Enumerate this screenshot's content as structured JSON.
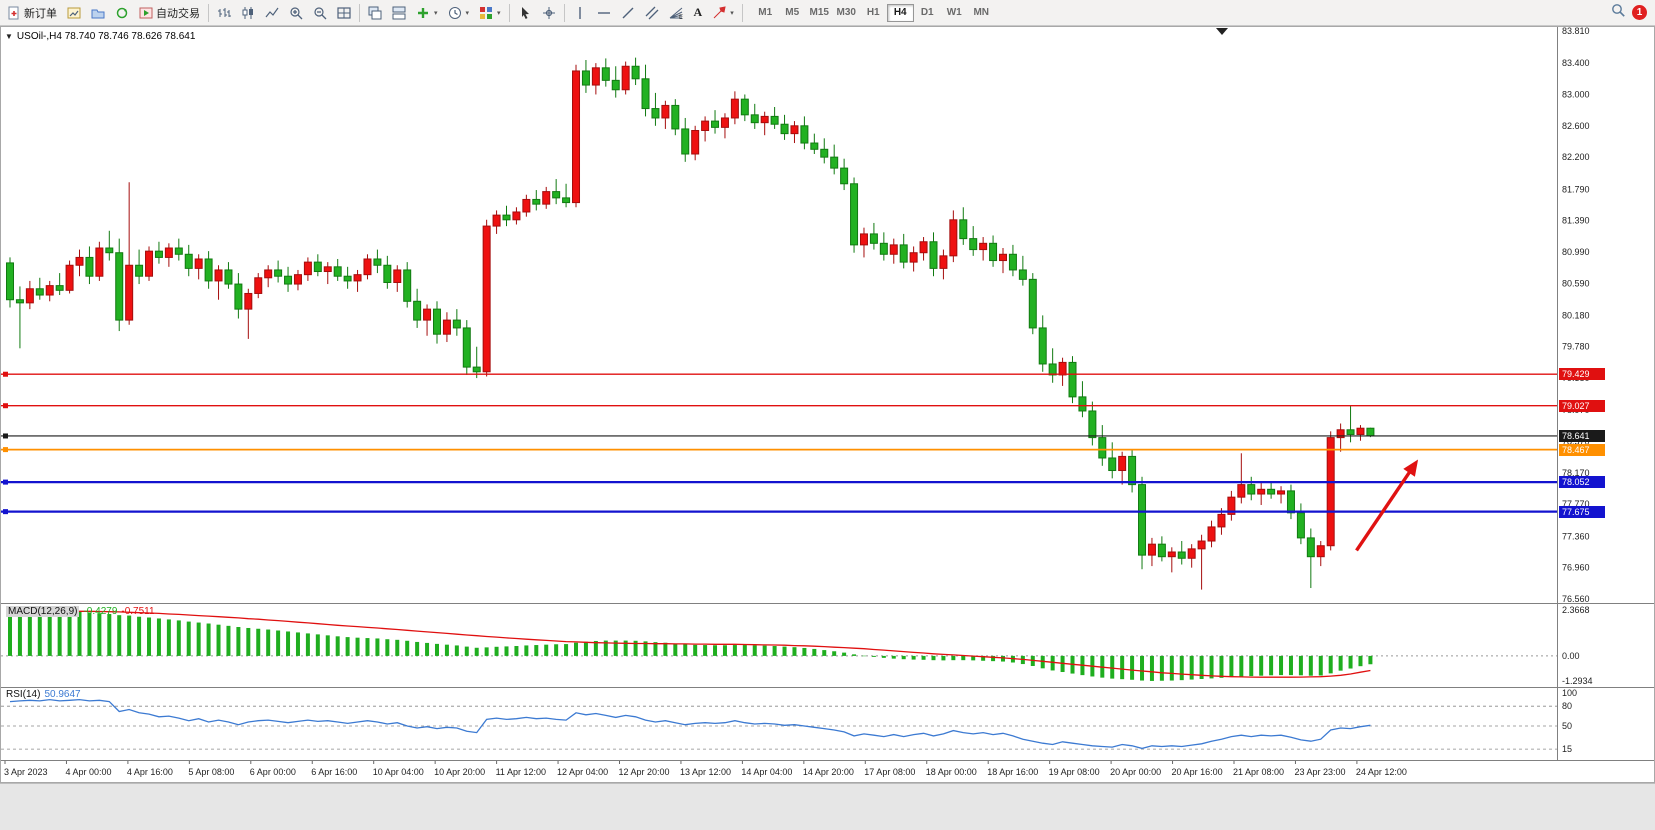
{
  "toolbar": {
    "new_order_label": "新订单",
    "auto_trading_label": "自动交易",
    "text_tool_label": "A",
    "timeframes": [
      "M1",
      "M5",
      "M15",
      "M30",
      "H1",
      "H4",
      "D1",
      "W1",
      "MN"
    ],
    "active_timeframe": "H4",
    "notification_badge": "1"
  },
  "chart_header": {
    "title": "USOil-,H4 78.740 78.746 78.626 78.641",
    "symbol": "USOil-",
    "period": "H4",
    "open": "78.740",
    "high": "78.746",
    "low": "78.626",
    "close": "78.641"
  },
  "price_axis": {
    "max": 83.81,
    "min": 76.56,
    "labels": [
      "83.810",
      "83.400",
      "83.000",
      "82.600",
      "82.200",
      "81.790",
      "81.390",
      "80.990",
      "80.590",
      "80.180",
      "79.780",
      "79.380",
      "78.970",
      "78.570",
      "78.170",
      "77.770",
      "77.360",
      "76.960",
      "76.560"
    ]
  },
  "hlines": [
    {
      "price": 79.429,
      "label": "79.429",
      "color": "#e01010",
      "width": 1.4
    },
    {
      "price": 79.027,
      "label": "79.027",
      "color": "#e01010",
      "width": 1.4
    },
    {
      "price": 78.641,
      "label": "78.641",
      "color": "#1a1a1a",
      "width": 1.1
    },
    {
      "price": 78.467,
      "label": "78.467",
      "color": "#ff9000",
      "width": 1.7
    },
    {
      "price": 78.052,
      "label": "78.052",
      "color": "#1313cf",
      "width": 2.2
    },
    {
      "price": 77.675,
      "label": "77.675",
      "color": "#1313cf",
      "width": 2.2
    }
  ],
  "time_axis": {
    "labels": [
      "3 Apr 2023",
      "4 Apr 00:00",
      "4 Apr 16:00",
      "5 Apr 08:00",
      "6 Apr 00:00",
      "6 Apr 16:00",
      "10 Apr 04:00",
      "10 Apr 20:00",
      "11 Apr 12:00",
      "12 Apr 04:00",
      "12 Apr 20:00",
      "13 Apr 12:00",
      "14 Apr 04:00",
      "14 Apr 20:00",
      "17 Apr 08:00",
      "18 Apr 00:00",
      "18 Apr 16:00",
      "19 Apr 08:00",
      "20 Apr 00:00",
      "20 Apr 16:00",
      "21 Apr 08:00",
      "23 Apr 23:00",
      "24 Apr 12:00"
    ]
  },
  "indicators": {
    "macd": {
      "name_label": "MACD(12,26,9)",
      "main_value": "-0.4279",
      "signal_value": "-0.7511",
      "axis_labels": [
        "2.3668",
        "0.00",
        "-1.2934"
      ],
      "max": 2.3668,
      "min": -1.2934,
      "histogram_color": "#1fae1f",
      "signal_color": "#e01010"
    },
    "rsi": {
      "name_label": "RSI(14)",
      "value": "50.9647",
      "axis_labels": [
        "100",
        "80",
        "50",
        "15"
      ],
      "levels": [
        80,
        50,
        15
      ],
      "max": 100,
      "min": 0,
      "line_color": "#3c7ad2"
    }
  },
  "chart_data": {
    "type": "candlestick",
    "symbol": "USOil",
    "timeframe": "H4",
    "up_color": "#ee1111",
    "down_color": "#22b122",
    "candles": [
      [
        80.85,
        80.92,
        80.28,
        80.38
      ],
      [
        80.38,
        80.55,
        79.76,
        80.34
      ],
      [
        80.34,
        80.62,
        80.26,
        80.52
      ],
      [
        80.52,
        80.66,
        80.38,
        80.44
      ],
      [
        80.44,
        80.62,
        80.36,
        80.56
      ],
      [
        80.56,
        80.72,
        80.44,
        80.5
      ],
      [
        80.5,
        80.88,
        80.46,
        80.82
      ],
      [
        80.82,
        81.02,
        80.68,
        80.92
      ],
      [
        80.92,
        81.06,
        80.58,
        80.68
      ],
      [
        80.68,
        81.12,
        80.62,
        81.04
      ],
      [
        81.04,
        81.26,
        80.88,
        80.98
      ],
      [
        80.98,
        81.16,
        79.98,
        80.12
      ],
      [
        80.12,
        81.88,
        80.06,
        80.82
      ],
      [
        80.82,
        81.02,
        80.58,
        80.68
      ],
      [
        80.68,
        81.06,
        80.62,
        81.0
      ],
      [
        81.0,
        81.12,
        80.84,
        80.92
      ],
      [
        80.92,
        81.1,
        80.8,
        81.04
      ],
      [
        81.04,
        81.16,
        80.88,
        80.96
      ],
      [
        80.96,
        81.08,
        80.68,
        80.78
      ],
      [
        80.78,
        80.96,
        80.64,
        80.9
      ],
      [
        80.9,
        81.0,
        80.52,
        80.62
      ],
      [
        80.62,
        80.82,
        80.38,
        80.76
      ],
      [
        80.76,
        80.86,
        80.52,
        80.58
      ],
      [
        80.58,
        80.72,
        80.14,
        80.26
      ],
      [
        80.26,
        80.52,
        79.88,
        80.46
      ],
      [
        80.46,
        80.72,
        80.4,
        80.66
      ],
      [
        80.66,
        80.82,
        80.54,
        80.76
      ],
      [
        80.76,
        80.88,
        80.6,
        80.68
      ],
      [
        80.68,
        80.8,
        80.48,
        80.58
      ],
      [
        80.58,
        80.76,
        80.5,
        80.7
      ],
      [
        80.7,
        80.92,
        80.62,
        80.86
      ],
      [
        80.86,
        80.96,
        80.68,
        80.74
      ],
      [
        80.74,
        80.86,
        80.58,
        80.8
      ],
      [
        80.8,
        80.9,
        80.62,
        80.68
      ],
      [
        80.68,
        80.8,
        80.52,
        80.62
      ],
      [
        80.62,
        80.76,
        80.48,
        80.7
      ],
      [
        80.7,
        80.96,
        80.64,
        80.9
      ],
      [
        80.9,
        81.02,
        80.72,
        80.82
      ],
      [
        80.82,
        80.94,
        80.52,
        80.6
      ],
      [
        80.6,
        80.82,
        80.48,
        80.76
      ],
      [
        80.76,
        80.86,
        80.28,
        80.36
      ],
      [
        80.36,
        80.52,
        80.02,
        80.12
      ],
      [
        80.12,
        80.32,
        79.92,
        80.26
      ],
      [
        80.26,
        80.36,
        79.82,
        79.94
      ],
      [
        79.94,
        80.22,
        79.84,
        80.12
      ],
      [
        80.12,
        80.26,
        79.92,
        80.02
      ],
      [
        80.02,
        80.12,
        79.42,
        79.52
      ],
      [
        79.52,
        79.78,
        79.38,
        79.46
      ],
      [
        79.46,
        81.4,
        79.4,
        81.32
      ],
      [
        81.32,
        81.52,
        81.22,
        81.46
      ],
      [
        81.46,
        81.58,
        81.32,
        81.4
      ],
      [
        81.4,
        81.56,
        81.34,
        81.5
      ],
      [
        81.5,
        81.72,
        81.44,
        81.66
      ],
      [
        81.66,
        81.78,
        81.52,
        81.6
      ],
      [
        81.6,
        81.82,
        81.54,
        81.76
      ],
      [
        81.76,
        81.92,
        81.6,
        81.68
      ],
      [
        81.68,
        81.86,
        81.56,
        81.62
      ],
      [
        81.62,
        83.38,
        81.56,
        83.3
      ],
      [
        83.3,
        83.44,
        83.02,
        83.12
      ],
      [
        83.12,
        83.4,
        83.0,
        83.34
      ],
      [
        83.34,
        83.46,
        83.1,
        83.18
      ],
      [
        83.18,
        83.36,
        82.96,
        83.06
      ],
      [
        83.06,
        83.42,
        83.0,
        83.36
      ],
      [
        83.36,
        83.47,
        83.12,
        83.2
      ],
      [
        83.2,
        83.38,
        82.72,
        82.82
      ],
      [
        82.82,
        83.02,
        82.6,
        82.7
      ],
      [
        82.7,
        82.92,
        82.56,
        82.86
      ],
      [
        82.86,
        82.94,
        82.48,
        82.56
      ],
      [
        82.56,
        82.7,
        82.14,
        82.24
      ],
      [
        82.24,
        82.6,
        82.16,
        82.54
      ],
      [
        82.54,
        82.72,
        82.4,
        82.66
      ],
      [
        82.66,
        82.8,
        82.5,
        82.58
      ],
      [
        82.58,
        82.76,
        82.44,
        82.7
      ],
      [
        82.7,
        83.04,
        82.62,
        82.94
      ],
      [
        82.94,
        83.0,
        82.66,
        82.74
      ],
      [
        82.74,
        82.88,
        82.56,
        82.64
      ],
      [
        82.64,
        82.78,
        82.48,
        82.72
      ],
      [
        82.72,
        82.84,
        82.56,
        82.62
      ],
      [
        82.62,
        82.74,
        82.42,
        82.5
      ],
      [
        82.5,
        82.66,
        82.38,
        82.6
      ],
      [
        82.6,
        82.72,
        82.3,
        82.38
      ],
      [
        82.38,
        82.5,
        82.24,
        82.3
      ],
      [
        82.3,
        82.44,
        82.12,
        82.2
      ],
      [
        82.2,
        82.36,
        81.98,
        82.06
      ],
      [
        82.06,
        82.18,
        81.78,
        81.86
      ],
      [
        81.86,
        81.94,
        80.98,
        81.08
      ],
      [
        81.08,
        81.3,
        80.92,
        81.22
      ],
      [
        81.22,
        81.36,
        81.02,
        81.1
      ],
      [
        81.1,
        81.24,
        80.88,
        80.96
      ],
      [
        80.96,
        81.16,
        80.84,
        81.08
      ],
      [
        81.08,
        81.22,
        80.78,
        80.86
      ],
      [
        80.86,
        81.06,
        80.74,
        80.98
      ],
      [
        80.98,
        81.18,
        80.88,
        81.12
      ],
      [
        81.12,
        81.24,
        80.68,
        80.78
      ],
      [
        80.78,
        81.02,
        80.64,
        80.94
      ],
      [
        80.94,
        81.52,
        80.86,
        81.4
      ],
      [
        81.4,
        81.56,
        81.08,
        81.16
      ],
      [
        81.16,
        81.32,
        80.94,
        81.02
      ],
      [
        81.02,
        81.18,
        80.88,
        81.1
      ],
      [
        81.1,
        81.2,
        80.8,
        80.88
      ],
      [
        80.88,
        81.04,
        80.72,
        80.96
      ],
      [
        80.96,
        81.08,
        80.68,
        80.76
      ],
      [
        80.76,
        80.94,
        80.56,
        80.64
      ],
      [
        80.64,
        80.72,
        79.94,
        80.02
      ],
      [
        80.02,
        80.18,
        79.46,
        79.56
      ],
      [
        79.56,
        79.76,
        79.32,
        79.42
      ],
      [
        79.42,
        79.64,
        79.28,
        79.58
      ],
      [
        79.58,
        79.66,
        79.06,
        79.14
      ],
      [
        79.14,
        79.34,
        78.88,
        78.96
      ],
      [
        78.96,
        79.08,
        78.52,
        78.62
      ],
      [
        78.62,
        78.78,
        78.26,
        78.36
      ],
      [
        78.36,
        78.56,
        78.1,
        78.2
      ],
      [
        78.2,
        78.44,
        78.02,
        78.38
      ],
      [
        78.38,
        78.46,
        77.92,
        78.02
      ],
      [
        78.02,
        78.12,
        76.94,
        77.12
      ],
      [
        77.12,
        77.34,
        76.98,
        77.26
      ],
      [
        77.26,
        77.36,
        77.04,
        77.1
      ],
      [
        77.1,
        77.22,
        76.9,
        77.16
      ],
      [
        77.16,
        77.3,
        77.0,
        77.08
      ],
      [
        77.08,
        77.26,
        76.96,
        77.2
      ],
      [
        77.2,
        77.38,
        76.68,
        77.3
      ],
      [
        77.3,
        77.56,
        77.22,
        77.48
      ],
      [
        77.48,
        77.72,
        77.38,
        77.64
      ],
      [
        77.64,
        77.94,
        77.56,
        77.86
      ],
      [
        77.86,
        78.42,
        77.78,
        78.02
      ],
      [
        78.02,
        78.12,
        77.82,
        77.9
      ],
      [
        77.9,
        78.04,
        77.76,
        77.96
      ],
      [
        77.96,
        78.06,
        77.84,
        77.9
      ],
      [
        77.9,
        78.0,
        77.78,
        77.94
      ],
      [
        77.94,
        78.02,
        77.58,
        77.66
      ],
      [
        77.66,
        77.78,
        77.26,
        77.34
      ],
      [
        77.34,
        77.46,
        76.7,
        77.1
      ],
      [
        77.1,
        77.3,
        76.98,
        77.24
      ],
      [
        77.24,
        78.7,
        77.18,
        78.62
      ],
      [
        78.62,
        78.8,
        78.44,
        78.72
      ],
      [
        78.72,
        79.03,
        78.56,
        78.66
      ],
      [
        78.66,
        78.78,
        78.58,
        78.74
      ],
      [
        78.74,
        78.746,
        78.626,
        78.641
      ]
    ],
    "macd_histogram": [
      2.3,
      2.32,
      2.34,
      2.35,
      2.34,
      2.32,
      2.3,
      2.27,
      2.24,
      2.2,
      2.16,
      2.1,
      2.08,
      2.02,
      1.98,
      1.93,
      1.88,
      1.83,
      1.77,
      1.72,
      1.67,
      1.61,
      1.55,
      1.49,
      1.44,
      1.4,
      1.36,
      1.31,
      1.26,
      1.21,
      1.16,
      1.11,
      1.06,
      1.01,
      0.97,
      0.94,
      0.92,
      0.9,
      0.86,
      0.83,
      0.78,
      0.72,
      0.67,
      0.62,
      0.58,
      0.54,
      0.48,
      0.42,
      0.44,
      0.47,
      0.49,
      0.51,
      0.54,
      0.56,
      0.58,
      0.6,
      0.61,
      0.68,
      0.73,
      0.77,
      0.79,
      0.79,
      0.79,
      0.78,
      0.75,
      0.71,
      0.68,
      0.64,
      0.6,
      0.57,
      0.56,
      0.55,
      0.55,
      0.56,
      0.56,
      0.55,
      0.53,
      0.51,
      0.48,
      0.45,
      0.41,
      0.36,
      0.3,
      0.24,
      0.17,
      0.08,
      0.01,
      -0.05,
      -0.1,
      -0.14,
      -0.17,
      -0.19,
      -0.2,
      -0.22,
      -0.23,
      -0.22,
      -0.22,
      -0.23,
      -0.25,
      -0.27,
      -0.29,
      -0.34,
      -0.42,
      -0.52,
      -0.64,
      -0.75,
      -0.83,
      -0.91,
      -0.99,
      -1.06,
      -1.12,
      -1.17,
      -1.2,
      -1.23,
      -1.27,
      -1.29,
      -1.28,
      -1.27,
      -1.25,
      -1.22,
      -1.19,
      -1.16,
      -1.13,
      -1.09,
      -1.06,
      -1.04,
      -1.02,
      -1.0,
      -0.99,
      -0.99,
      -1.0,
      -1.02,
      -1.01,
      -0.9,
      -0.76,
      -0.65,
      -0.53,
      -0.43
    ],
    "macd_signal": [
      2.18,
      2.21,
      2.24,
      2.26,
      2.28,
      2.29,
      2.3,
      2.3,
      2.3,
      2.29,
      2.28,
      2.27,
      2.25,
      2.23,
      2.21,
      2.19,
      2.16,
      2.14,
      2.11,
      2.08,
      2.05,
      2.02,
      1.99,
      1.96,
      1.92,
      1.89,
      1.85,
      1.82,
      1.78,
      1.74,
      1.7,
      1.66,
      1.62,
      1.58,
      1.54,
      1.51,
      1.47,
      1.44,
      1.4,
      1.36,
      1.32,
      1.28,
      1.24,
      1.2,
      1.16,
      1.12,
      1.08,
      1.04,
      1.0,
      0.97,
      0.93,
      0.9,
      0.86,
      0.83,
      0.8,
      0.77,
      0.74,
      0.72,
      0.7,
      0.68,
      0.67,
      0.66,
      0.65,
      0.64,
      0.64,
      0.63,
      0.63,
      0.62,
      0.62,
      0.61,
      0.61,
      0.6,
      0.6,
      0.6,
      0.59,
      0.58,
      0.57,
      0.56,
      0.55,
      0.53,
      0.52,
      0.5,
      0.48,
      0.45,
      0.43,
      0.4,
      0.37,
      0.33,
      0.3,
      0.26,
      0.22,
      0.18,
      0.15,
      0.11,
      0.08,
      0.05,
      0.02,
      -0.01,
      -0.04,
      -0.07,
      -0.1,
      -0.14,
      -0.18,
      -0.23,
      -0.28,
      -0.33,
      -0.38,
      -0.43,
      -0.48,
      -0.53,
      -0.58,
      -0.63,
      -0.68,
      -0.73,
      -0.78,
      -0.82,
      -0.87,
      -0.9,
      -0.94,
      -0.97,
      -1.0,
      -1.03,
      -1.05,
      -1.07,
      -1.08,
      -1.09,
      -1.1,
      -1.1,
      -1.1,
      -1.1,
      -1.09,
      -1.08,
      -1.07,
      -1.04,
      -1.0,
      -0.93,
      -0.84,
      -0.75
    ],
    "rsi_values": [
      87,
      88,
      89,
      88,
      90,
      88,
      89,
      90,
      88,
      89,
      87,
      72,
      75,
      70,
      68,
      64,
      65,
      62,
      58,
      61,
      56,
      59,
      56,
      52,
      56,
      58,
      59,
      57,
      55,
      57,
      59,
      57,
      58,
      56,
      54,
      56,
      58,
      56,
      53,
      55,
      50,
      47,
      49,
      46,
      48,
      47,
      42,
      40,
      60,
      62,
      60,
      61,
      63,
      61,
      62,
      60,
      59,
      70,
      67,
      69,
      66,
      63,
      66,
      64,
      59,
      56,
      58,
      55,
      52,
      54,
      55,
      54,
      55,
      58,
      55,
      53,
      54,
      53,
      51,
      52,
      50,
      48,
      46,
      44,
      41,
      35,
      38,
      36,
      34,
      37,
      34,
      37,
      39,
      35,
      38,
      43,
      40,
      38,
      40,
      37,
      39,
      35,
      30,
      27,
      24,
      22,
      26,
      24,
      22,
      20,
      19,
      18,
      22,
      20,
      16,
      20,
      19,
      20,
      19,
      21,
      23,
      27,
      30,
      34,
      36,
      34,
      36,
      35,
      36,
      33,
      29,
      27,
      30,
      44,
      47,
      46,
      49,
      51
    ],
    "arrow_annotation": {
      "from_index": 135.6,
      "from_price": 77.18,
      "to_index": 141.8,
      "to_price": 78.34,
      "color": "#e01212"
    }
  }
}
